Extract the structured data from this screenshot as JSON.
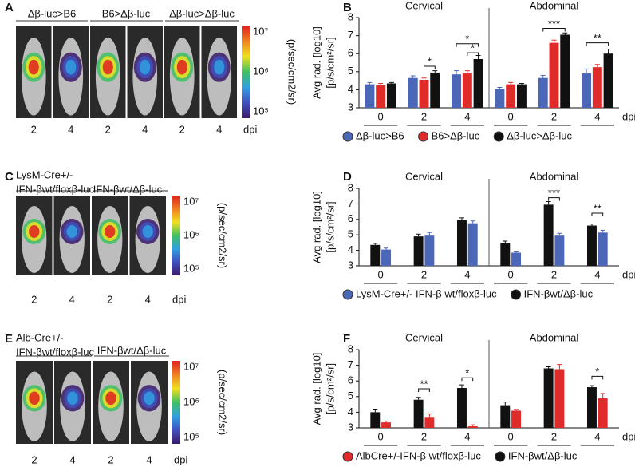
{
  "panel_labels": [
    "A",
    "B",
    "C",
    "D",
    "E",
    "F"
  ],
  "image_panels": [
    {
      "headers": [
        "Δβ-luc>B6",
        "B6>Δβ-luc",
        "Δβ-luc>Δβ-luc"
      ],
      "days": [
        "2",
        "4",
        "2",
        "4",
        "2",
        "4"
      ],
      "unit": "dpi",
      "scale_ticks": [
        "10⁷",
        "10⁶",
        "10⁵"
      ],
      "scale_label": "(p/sec/cm2/sr)"
    },
    {
      "headers": [
        "LysM-Cre+/-",
        "IFN-βwt/floxβ-luc",
        "IFN-βwt/Δβ-luc"
      ],
      "days": [
        "2",
        "4",
        "2",
        "4"
      ],
      "unit": "dpi",
      "scale_ticks": [
        "10⁷",
        "10⁶",
        "10⁵"
      ],
      "scale_label": "(p/sec/cm2/sr)"
    },
    {
      "headers": [
        "Alb-Cre+/-",
        "IFN-βwt/floxβ-luc",
        "IFN-βwt/Δβ-luc"
      ],
      "days": [
        "2",
        "4",
        "2",
        "4"
      ],
      "unit": "dpi",
      "scale_ticks": [
        "10⁷",
        "10⁶",
        "10⁵"
      ],
      "scale_label": "(p/sec/cm2/sr)"
    }
  ],
  "chart_data": [
    {
      "type": "bar",
      "groups": [
        "Cervical",
        "Abdominal"
      ],
      "categories": [
        "0",
        "2",
        "4",
        "0",
        "2",
        "4"
      ],
      "x_unit": "dpi",
      "y_label": [
        "Avg rad. [log10]",
        "[p/s/cm²/sr]"
      ],
      "ylim": [
        3,
        8
      ],
      "yticks": [
        3,
        4,
        5,
        6,
        7,
        8
      ],
      "series": [
        {
          "name": "Δβ-luc>B6",
          "color": "#4a67b8",
          "values": [
            4.3,
            4.65,
            4.85,
            4.05,
            4.65,
            4.9
          ],
          "errors": [
            0.1,
            0.12,
            0.2,
            0.08,
            0.15,
            0.25
          ]
        },
        {
          "name": "B6>Δβ-luc",
          "color": "#e02b2b",
          "values": [
            4.25,
            4.55,
            4.9,
            4.3,
            6.6,
            5.25
          ],
          "errors": [
            0.1,
            0.1,
            0.15,
            0.1,
            0.15,
            0.15
          ]
        },
        {
          "name": "Δβ-luc>Δβ-luc",
          "color": "#111111",
          "values": [
            4.35,
            4.95,
            5.7,
            4.3,
            7.05,
            6.0
          ],
          "errors": [
            0.05,
            0.1,
            0.2,
            0.05,
            0.1,
            0.25
          ]
        }
      ],
      "annotations": [
        "*",
        "*",
        "*",
        "***",
        "**"
      ]
    },
    {
      "type": "bar",
      "groups": [
        "Cervical",
        "Abdominal"
      ],
      "categories": [
        "0",
        "2",
        "4",
        "0",
        "2",
        "4"
      ],
      "x_unit": "dpi",
      "y_label": [
        "Avg rad. [log10]",
        "[p/s/cm²/sr]"
      ],
      "ylim": [
        3,
        8
      ],
      "yticks": [
        3,
        4,
        5,
        6,
        7,
        8
      ],
      "series": [
        {
          "name": "LysM-Cre+/- IFN-β wt/floxβ-luc",
          "color": "#4a67b8",
          "values": [
            4.05,
            4.95,
            5.75,
            3.85,
            4.95,
            5.15
          ],
          "errors": [
            0.1,
            0.2,
            0.15,
            0.05,
            0.15,
            0.15
          ]
        },
        {
          "name": "IFN-βwt/Δβ-luc",
          "color": "#111111",
          "values": [
            4.35,
            4.9,
            5.95,
            4.45,
            6.95,
            5.6
          ],
          "errors": [
            0.1,
            0.15,
            0.15,
            0.15,
            0.2,
            0.1
          ]
        }
      ],
      "annotations": [
        "***",
        "**"
      ]
    },
    {
      "type": "bar",
      "groups": [
        "Cervical",
        "Abdominal"
      ],
      "categories": [
        "0",
        "2",
        "4",
        "0",
        "2",
        "4"
      ],
      "x_unit": "dpi",
      "y_label": [
        "Avg rad. [log10]",
        "[p/s/cm²/sr]"
      ],
      "ylim": [
        3,
        8
      ],
      "yticks": [
        3,
        4,
        5,
        6,
        7,
        8
      ],
      "series": [
        {
          "name": "AlbCre+/-IFN-β wt/floxβ-luc",
          "color": "#e02b2b",
          "values": [
            3.35,
            3.7,
            3.1,
            4.1,
            6.75,
            4.9
          ],
          "errors": [
            0.08,
            0.2,
            0.1,
            0.08,
            0.3,
            0.3
          ]
        },
        {
          "name": "IFN-βwt/Δβ-luc",
          "color": "#111111",
          "values": [
            4.0,
            4.8,
            5.55,
            4.45,
            6.8,
            5.6
          ],
          "errors": [
            0.2,
            0.15,
            0.2,
            0.2,
            0.1,
            0.1
          ]
        }
      ],
      "annotations": [
        "**",
        "*",
        "*"
      ]
    }
  ]
}
